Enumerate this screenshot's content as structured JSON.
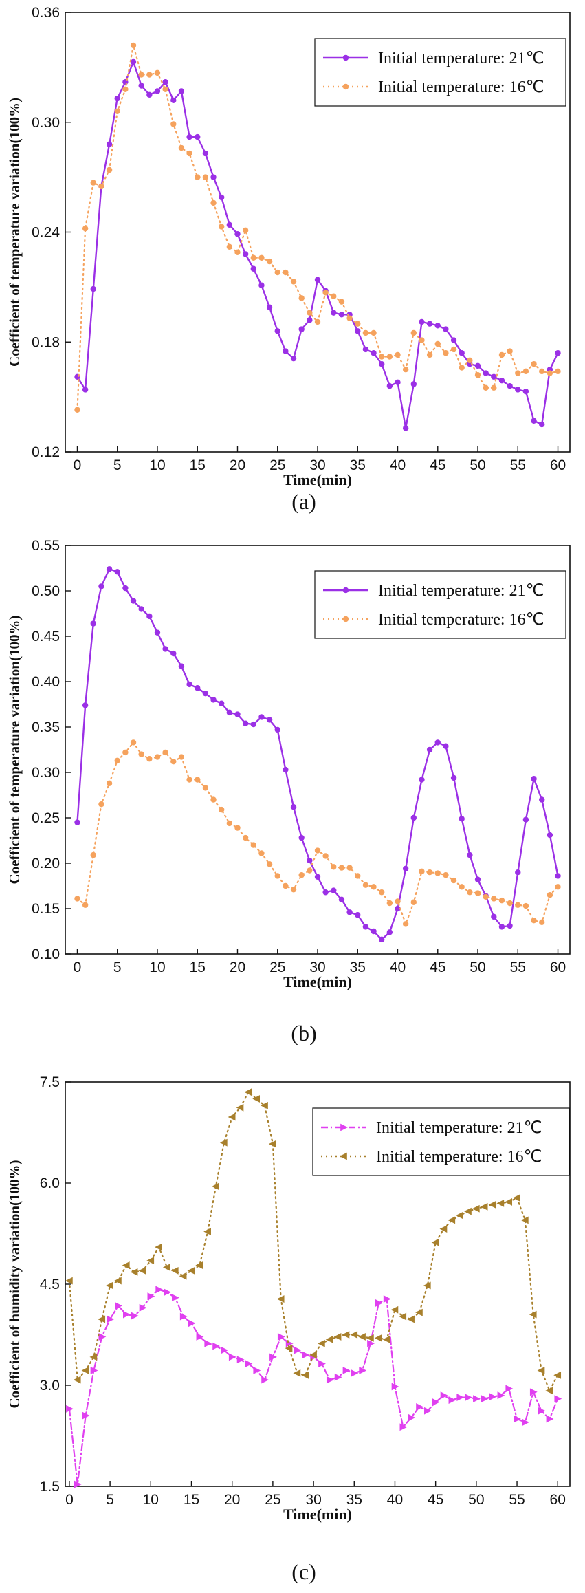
{
  "chart_data": [
    {
      "type": "line",
      "panel_label": "(a)",
      "xlabel": "Time(min)",
      "ylabel": "Coefficient of temperature variation(100%)",
      "xlim": [
        -1.5,
        61.5
      ],
      "ylim": [
        0.12,
        0.36
      ],
      "xticks": [
        0,
        5,
        10,
        15,
        20,
        25,
        30,
        35,
        40,
        45,
        50,
        55,
        60
      ],
      "xtick_labels": [
        "0",
        "5",
        "10",
        "15",
        "20",
        "25",
        "30",
        "35",
        "40",
        "45",
        "50",
        "55",
        "60"
      ],
      "yticks": [
        0.12,
        0.18,
        0.24,
        0.3,
        0.36
      ],
      "ytick_labels": [
        "0.12",
        "0.18",
        "0.24",
        "0.30",
        "0.36"
      ],
      "legend_position": "top-right",
      "series": [
        {
          "name": "Initial temperature: 21℃",
          "color": "#9b30e6",
          "style": "solid",
          "marker": "circle",
          "x": [
            0,
            1,
            2,
            3,
            4,
            5,
            6,
            7,
            8,
            9,
            10,
            11,
            12,
            13,
            14,
            15,
            16,
            17,
            18,
            19,
            20,
            21,
            22,
            23,
            24,
            25,
            26,
            27,
            28,
            29,
            30,
            31,
            32,
            33,
            34,
            35,
            36,
            37,
            38,
            39,
            40,
            41,
            42,
            43,
            44,
            45,
            46,
            47,
            48,
            49,
            50,
            51,
            52,
            53,
            54,
            55,
            56,
            57,
            58,
            59,
            60
          ],
          "values": [
            0.161,
            0.154,
            0.209,
            0.265,
            0.288,
            0.313,
            0.322,
            0.333,
            0.32,
            0.315,
            0.317,
            0.322,
            0.312,
            0.317,
            0.292,
            0.292,
            0.283,
            0.27,
            0.259,
            0.244,
            0.239,
            0.228,
            0.22,
            0.211,
            0.199,
            0.186,
            0.175,
            0.171,
            0.187,
            0.192,
            0.214,
            0.208,
            0.196,
            0.195,
            0.195,
            0.186,
            0.176,
            0.174,
            0.168,
            0.156,
            0.158,
            0.133,
            0.157,
            0.191,
            0.19,
            0.189,
            0.187,
            0.181,
            0.174,
            0.168,
            0.167,
            0.163,
            0.161,
            0.159,
            0.156,
            0.154,
            0.153,
            0.137,
            0.135,
            0.165,
            0.174
          ]
        },
        {
          "name": "Initial temperature: 16℃",
          "color": "#f5a25d",
          "style": "dotted",
          "marker": "circle",
          "x": [
            0,
            1,
            2,
            3,
            4,
            5,
            6,
            7,
            8,
            9,
            10,
            11,
            12,
            13,
            14,
            15,
            16,
            17,
            18,
            19,
            20,
            21,
            22,
            23,
            24,
            25,
            26,
            27,
            28,
            29,
            30,
            31,
            32,
            33,
            34,
            35,
            36,
            37,
            38,
            39,
            40,
            41,
            42,
            43,
            44,
            45,
            46,
            47,
            48,
            49,
            50,
            51,
            52,
            53,
            54,
            55,
            56,
            57,
            58,
            59,
            60
          ],
          "values": [
            0.143,
            0.242,
            0.267,
            0.265,
            0.274,
            0.306,
            0.318,
            0.342,
            0.326,
            0.326,
            0.327,
            0.318,
            0.299,
            0.286,
            0.283,
            0.27,
            0.27,
            0.256,
            0.243,
            0.232,
            0.229,
            0.241,
            0.226,
            0.226,
            0.224,
            0.218,
            0.218,
            0.213,
            0.204,
            0.196,
            0.191,
            0.207,
            0.205,
            0.202,
            0.193,
            0.19,
            0.185,
            0.185,
            0.172,
            0.172,
            0.173,
            0.165,
            0.185,
            0.181,
            0.173,
            0.179,
            0.174,
            0.176,
            0.166,
            0.17,
            0.162,
            0.155,
            0.155,
            0.173,
            0.175,
            0.163,
            0.164,
            0.168,
            0.164,
            0.163,
            0.164
          ]
        }
      ]
    },
    {
      "type": "line",
      "panel_label": "(b)",
      "xlabel": "Time(min)",
      "ylabel": "Coefficient of temperature variation(100%)",
      "xlim": [
        -1.5,
        61.5
      ],
      "ylim": [
        0.1,
        0.55
      ],
      "xticks": [
        0,
        5,
        10,
        15,
        20,
        25,
        30,
        35,
        40,
        45,
        50,
        55,
        60
      ],
      "xtick_labels": [
        "0",
        "5",
        "10",
        "15",
        "20",
        "25",
        "30",
        "35",
        "40",
        "45",
        "50",
        "55",
        "60"
      ],
      "yticks": [
        0.1,
        0.15,
        0.2,
        0.25,
        0.3,
        0.35,
        0.4,
        0.45,
        0.5,
        0.55
      ],
      "ytick_labels": [
        "0.10",
        "0.15",
        "0.20",
        "0.25",
        "0.30",
        "0.35",
        "0.40",
        "0.45",
        "0.50",
        "0.55"
      ],
      "legend_position": "top-right",
      "series": [
        {
          "name": "Initial temperature: 21℃",
          "color": "#9b30e6",
          "style": "solid",
          "marker": "circle",
          "x": [
            0,
            1,
            2,
            3,
            4,
            5,
            6,
            7,
            8,
            9,
            10,
            11,
            12,
            13,
            14,
            15,
            16,
            17,
            18,
            19,
            20,
            21,
            22,
            23,
            24,
            25,
            26,
            27,
            28,
            29,
            30,
            31,
            32,
            33,
            34,
            35,
            36,
            37,
            38,
            39,
            40,
            41,
            42,
            43,
            44,
            45,
            46,
            47,
            48,
            49,
            50,
            51,
            52,
            53,
            54,
            55,
            56,
            57,
            58,
            59,
            60
          ],
          "values": [
            0.245,
            0.374,
            0.464,
            0.505,
            0.524,
            0.521,
            0.503,
            0.489,
            0.48,
            0.472,
            0.454,
            0.436,
            0.431,
            0.417,
            0.397,
            0.393,
            0.387,
            0.38,
            0.376,
            0.366,
            0.364,
            0.354,
            0.353,
            0.361,
            0.358,
            0.347,
            0.303,
            0.262,
            0.228,
            0.203,
            0.185,
            0.168,
            0.17,
            0.16,
            0.146,
            0.143,
            0.13,
            0.125,
            0.116,
            0.124,
            0.15,
            0.194,
            0.25,
            0.292,
            0.325,
            0.333,
            0.329,
            0.294,
            0.249,
            0.209,
            0.182,
            0.164,
            0.141,
            0.13,
            0.131,
            0.19,
            0.248,
            0.293,
            0.27,
            0.231,
            0.186
          ]
        },
        {
          "name": "Initial temperature: 16℃",
          "color": "#f5a25d",
          "style": "dotted",
          "marker": "circle",
          "x": [
            0,
            1,
            2,
            3,
            4,
            5,
            6,
            7,
            8,
            9,
            10,
            11,
            12,
            13,
            14,
            15,
            16,
            17,
            18,
            19,
            20,
            21,
            22,
            23,
            24,
            25,
            26,
            27,
            28,
            29,
            30,
            31,
            32,
            33,
            34,
            35,
            36,
            37,
            38,
            39,
            40,
            41,
            42,
            43,
            44,
            45,
            46,
            47,
            48,
            49,
            50,
            51,
            52,
            53,
            54,
            55,
            56,
            57,
            58,
            59,
            60
          ],
          "values": [
            0.161,
            0.154,
            0.209,
            0.265,
            0.288,
            0.313,
            0.322,
            0.333,
            0.32,
            0.315,
            0.317,
            0.322,
            0.312,
            0.317,
            0.292,
            0.292,
            0.283,
            0.27,
            0.259,
            0.244,
            0.239,
            0.228,
            0.22,
            0.211,
            0.199,
            0.186,
            0.175,
            0.171,
            0.187,
            0.192,
            0.214,
            0.208,
            0.196,
            0.195,
            0.195,
            0.186,
            0.176,
            0.174,
            0.168,
            0.156,
            0.158,
            0.133,
            0.157,
            0.191,
            0.19,
            0.189,
            0.187,
            0.181,
            0.174,
            0.168,
            0.167,
            0.163,
            0.161,
            0.159,
            0.156,
            0.154,
            0.153,
            0.137,
            0.135,
            0.165,
            0.174
          ]
        }
      ]
    },
    {
      "type": "line",
      "panel_label": "(c)",
      "xlabel": "Time(min)",
      "ylabel": "Coefficient of humidity variation(100%)",
      "xlim": [
        -0.5,
        61.5
      ],
      "ylim": [
        1.5,
        7.5
      ],
      "xticks": [
        0,
        5,
        10,
        15,
        20,
        25,
        30,
        35,
        40,
        45,
        50,
        55,
        60
      ],
      "xtick_labels": [
        "0",
        "5",
        "10",
        "15",
        "20",
        "25",
        "30",
        "35",
        "40",
        "45",
        "50",
        "55",
        "60"
      ],
      "yticks": [
        1.5,
        3.0,
        4.5,
        6.0,
        7.5
      ],
      "ytick_labels": [
        "1.5",
        "3.0",
        "4.5",
        "6.0",
        "7.5"
      ],
      "legend_position": "top-right",
      "series": [
        {
          "name": "Initial temperature: 21℃",
          "color": "#e040f0",
          "style": "dashdot",
          "marker": "triangle-right",
          "x": [
            0,
            1,
            2,
            3,
            4,
            5,
            6,
            7,
            8,
            9,
            10,
            11,
            12,
            13,
            14,
            15,
            16,
            17,
            18,
            19,
            20,
            21,
            22,
            23,
            24,
            25,
            26,
            27,
            28,
            29,
            30,
            31,
            32,
            33,
            34,
            35,
            36,
            37,
            38,
            39,
            40,
            41,
            42,
            43,
            44,
            45,
            46,
            47,
            48,
            49,
            50,
            51,
            52,
            53,
            54,
            55,
            56,
            57,
            58,
            59,
            60
          ],
          "values": [
            2.65,
            1.53,
            2.55,
            3.22,
            3.72,
            3.98,
            4.18,
            4.05,
            4.03,
            4.15,
            4.32,
            4.42,
            4.38,
            4.3,
            4.02,
            3.92,
            3.72,
            3.62,
            3.58,
            3.52,
            3.42,
            3.38,
            3.32,
            3.22,
            3.08,
            3.42,
            3.72,
            3.62,
            3.52,
            3.45,
            3.42,
            3.32,
            3.08,
            3.12,
            3.22,
            3.18,
            3.22,
            3.62,
            4.22,
            4.28,
            2.98,
            2.38,
            2.52,
            2.68,
            2.62,
            2.75,
            2.85,
            2.78,
            2.82,
            2.82,
            2.8,
            2.8,
            2.83,
            2.85,
            2.95,
            2.5,
            2.45,
            2.9,
            2.62,
            2.5,
            2.8
          ]
        },
        {
          "name": "Initial temperature: 16℃",
          "color": "#a8802c",
          "style": "dotted",
          "marker": "triangle-left",
          "x": [
            0,
            1,
            2,
            3,
            4,
            5,
            6,
            7,
            8,
            9,
            10,
            11,
            12,
            13,
            14,
            15,
            16,
            17,
            18,
            19,
            20,
            21,
            22,
            23,
            24,
            25,
            26,
            27,
            28,
            29,
            30,
            31,
            32,
            33,
            34,
            35,
            36,
            37,
            38,
            39,
            40,
            41,
            42,
            43,
            44,
            45,
            46,
            47,
            48,
            49,
            50,
            51,
            52,
            53,
            54,
            55,
            56,
            57,
            58,
            59,
            60
          ],
          "values": [
            4.55,
            3.08,
            3.22,
            3.42,
            3.98,
            4.48,
            4.55,
            4.78,
            4.68,
            4.7,
            4.85,
            5.05,
            4.75,
            4.7,
            4.62,
            4.7,
            4.78,
            5.28,
            5.95,
            6.6,
            6.98,
            7.12,
            7.35,
            7.25,
            7.15,
            6.58,
            4.28,
            3.55,
            3.18,
            3.15,
            3.45,
            3.62,
            3.68,
            3.72,
            3.75,
            3.75,
            3.72,
            3.7,
            3.7,
            3.68,
            4.12,
            4.02,
            3.98,
            4.08,
            4.48,
            5.12,
            5.32,
            5.45,
            5.52,
            5.58,
            5.62,
            5.65,
            5.68,
            5.7,
            5.72,
            5.78,
            5.45,
            4.05,
            3.22,
            2.92,
            3.15
          ]
        }
      ]
    }
  ]
}
